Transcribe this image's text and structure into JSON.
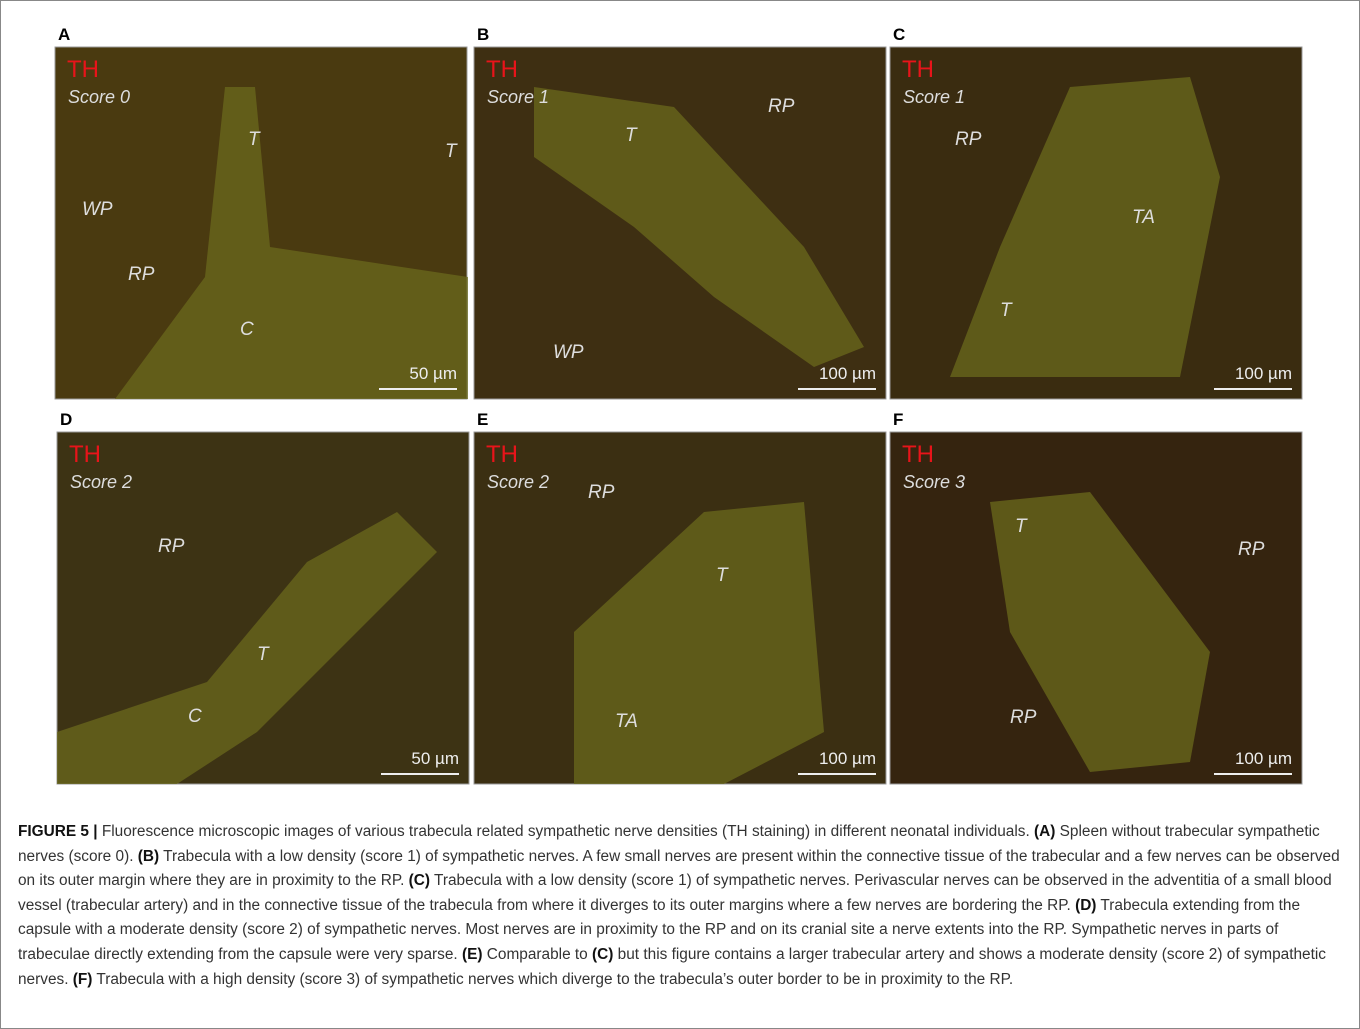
{
  "panels": [
    {
      "letter": "A",
      "stain": "TH",
      "score": "Score 0",
      "labels": [
        "T",
        "T",
        "WP",
        "RP",
        "C"
      ],
      "scale_bar": "50 µm"
    },
    {
      "letter": "B",
      "stain": "TH",
      "score": "Score 1",
      "labels": [
        "T",
        "RP",
        "WP"
      ],
      "scale_bar": "100 µm"
    },
    {
      "letter": "C",
      "stain": "TH",
      "score": "Score 1",
      "labels": [
        "RP",
        "TA",
        "T"
      ],
      "scale_bar": "100 µm"
    },
    {
      "letter": "D",
      "stain": "TH",
      "score": "Score 2",
      "labels": [
        "RP",
        "T",
        "C"
      ],
      "scale_bar": "50 µm"
    },
    {
      "letter": "E",
      "stain": "TH",
      "score": "Score 2",
      "labels": [
        "RP",
        "T",
        "TA"
      ],
      "scale_bar": "100 µm"
    },
    {
      "letter": "F",
      "stain": "TH",
      "score": "Score 3",
      "labels": [
        "T",
        "RP",
        "RP"
      ],
      "scale_bar": "100 µm"
    }
  ],
  "caption": {
    "segments": [
      {
        "bold": true,
        "text": "FIGURE 5 |"
      },
      {
        "bold": false,
        "text": " Fluorescence microscopic images of various trabecula related sympathetic nerve densities (TH staining) in different neonatal individuals. "
      },
      {
        "bold": true,
        "text": "(A)"
      },
      {
        "bold": false,
        "text": " Spleen without trabecular sympathetic nerves (score 0). "
      },
      {
        "bold": true,
        "text": "(B)"
      },
      {
        "bold": false,
        "text": " Trabecula with a low density (score 1) of sympathetic nerves. A few small nerves are present within the connective tissue of the trabecular and a few nerves can be observed on its outer margin where they are in proximity to the RP. "
      },
      {
        "bold": true,
        "text": "(C)"
      },
      {
        "bold": false,
        "text": " Trabecula with a low density (score 1) of sympathetic nerves. Perivascular nerves can be observed in the adventitia of a small blood vessel (trabecular artery) and in the connective tissue of the trabecula from where it diverges to its outer margins where a few nerves are bordering the RP. "
      },
      {
        "bold": true,
        "text": "(D)"
      },
      {
        "bold": false,
        "text": " Trabecula extending from the capsule with a moderate density (score 2) of sympathetic nerves. Most nerves are in proximity to the RP and on its cranial site a nerve extents into the RP. Sympathetic nerves in parts of trabeculae directly extending from the capsule were very sparse. "
      },
      {
        "bold": true,
        "text": "(E)"
      },
      {
        "bold": false,
        "text": " Comparable to "
      },
      {
        "bold": true,
        "text": "(C)"
      },
      {
        "bold": false,
        "text": " but this figure contains a larger trabecular artery and shows a moderate density (score 2) of sympathetic nerves. "
      },
      {
        "bold": true,
        "text": "(F)"
      },
      {
        "bold": false,
        "text": " Trabecula with a high density (score 3) of sympathetic nerves which diverge to the trabecula’s outer border to be in proximity to the RP."
      }
    ]
  }
}
